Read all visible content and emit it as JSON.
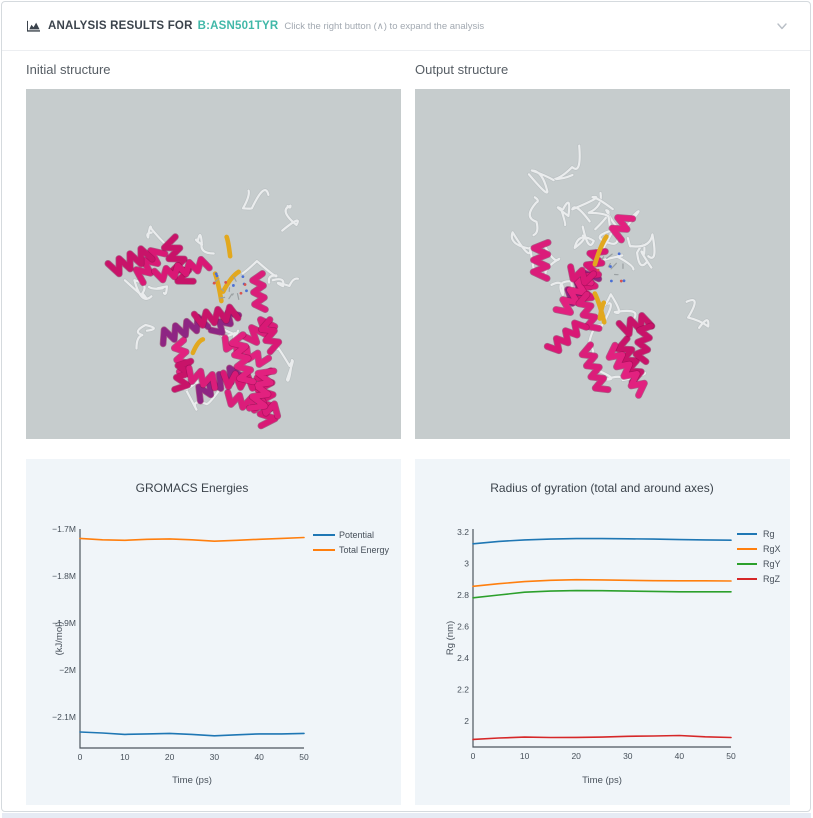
{
  "header": {
    "title": "ANALYSIS RESULTS FOR",
    "mutation": "B:ASN501TYR",
    "hint": "Click the right button (∧) to expand the analysis",
    "icon": "area-chart-icon",
    "collapse_icon": "chevron-down-icon"
  },
  "viewers": {
    "initial_label": "Initial structure",
    "output_label": "Output structure"
  },
  "colors": {
    "accent_teal": "#41b8a8",
    "header_text": "#3b434c",
    "hint_text": "#a2a9b1",
    "viewer_bg": "#c6cccd",
    "panel_bg": "#f0f5f9",
    "axis": "#4d565e",
    "ribbon_pink": "#d91875",
    "ribbon_purple": "#8e2583",
    "ribbon_yellow": "#e2a81e",
    "ribbon_white": "#eceeef"
  },
  "chart_data": [
    {
      "type": "line",
      "title": "GROMACS Energies",
      "xlabel": "Time (ps)",
      "ylabel": "(kJ/mol)",
      "x": [
        0,
        5,
        10,
        15,
        20,
        25,
        30,
        35,
        40,
        45,
        50
      ],
      "xticks": [
        0,
        10,
        20,
        30,
        40,
        50
      ],
      "xlim": [
        0,
        50
      ],
      "ylim": [
        -2166000,
        -1700000
      ],
      "yticks": [
        {
          "value": -1700000,
          "label": "−1.7M"
        },
        {
          "value": -1800000,
          "label": "−1.8M"
        },
        {
          "value": -1900000,
          "label": "−1.9M"
        },
        {
          "value": -2000000,
          "label": "−2M"
        },
        {
          "value": -2100000,
          "label": "−2.1M"
        }
      ],
      "grid": false,
      "legend_position": "top-right",
      "series": [
        {
          "name": "Potential",
          "color": "#1f77b4",
          "values": [
            -2132000,
            -2134000,
            -2137000,
            -2136000,
            -2135000,
            -2137000,
            -2140000,
            -2138000,
            -2136000,
            -2136000,
            -2135000
          ]
        },
        {
          "name": "Total Energy",
          "color": "#ff7f0e",
          "values": [
            -1720000,
            -1723000,
            -1724000,
            -1722000,
            -1721000,
            -1723000,
            -1726000,
            -1724000,
            -1722000,
            -1720000,
            -1718000
          ]
        }
      ]
    },
    {
      "type": "line",
      "title": "Radius of gyration (total and around axes)",
      "xlabel": "Time (ps)",
      "ylabel": "Rg (nm)",
      "x": [
        0,
        5,
        10,
        15,
        20,
        25,
        30,
        35,
        40,
        45,
        50
      ],
      "xticks": [
        0,
        10,
        20,
        30,
        40,
        50
      ],
      "xlim": [
        0,
        50
      ],
      "ylim": [
        1.835,
        3.219
      ],
      "yticks": [
        {
          "value": 3.2,
          "label": "3.2"
        },
        {
          "value": 3.0,
          "label": "3"
        },
        {
          "value": 2.8,
          "label": "2.8"
        },
        {
          "value": 2.6,
          "label": "2.6"
        },
        {
          "value": 2.4,
          "label": "2.4"
        },
        {
          "value": 2.2,
          "label": "2.2"
        },
        {
          "value": 2.0,
          "label": "2"
        }
      ],
      "grid": false,
      "legend_position": "top-right",
      "series": [
        {
          "name": "Rg",
          "color": "#1f77b4",
          "values": [
            3.125,
            3.14,
            3.15,
            3.155,
            3.158,
            3.158,
            3.157,
            3.155,
            3.152,
            3.15,
            3.148
          ]
        },
        {
          "name": "RgX",
          "color": "#ff7f0e",
          "values": [
            2.855,
            2.872,
            2.885,
            2.893,
            2.897,
            2.896,
            2.893,
            2.891,
            2.89,
            2.89,
            2.889
          ]
        },
        {
          "name": "RgY",
          "color": "#2ca02c",
          "values": [
            2.782,
            2.8,
            2.818,
            2.825,
            2.828,
            2.827,
            2.825,
            2.823,
            2.82,
            2.82,
            2.82
          ]
        },
        {
          "name": "RgZ",
          "color": "#d62728",
          "values": [
            1.883,
            1.892,
            1.898,
            1.895,
            1.896,
            1.898,
            1.903,
            1.905,
            1.908,
            1.9,
            1.895
          ]
        }
      ]
    }
  ]
}
